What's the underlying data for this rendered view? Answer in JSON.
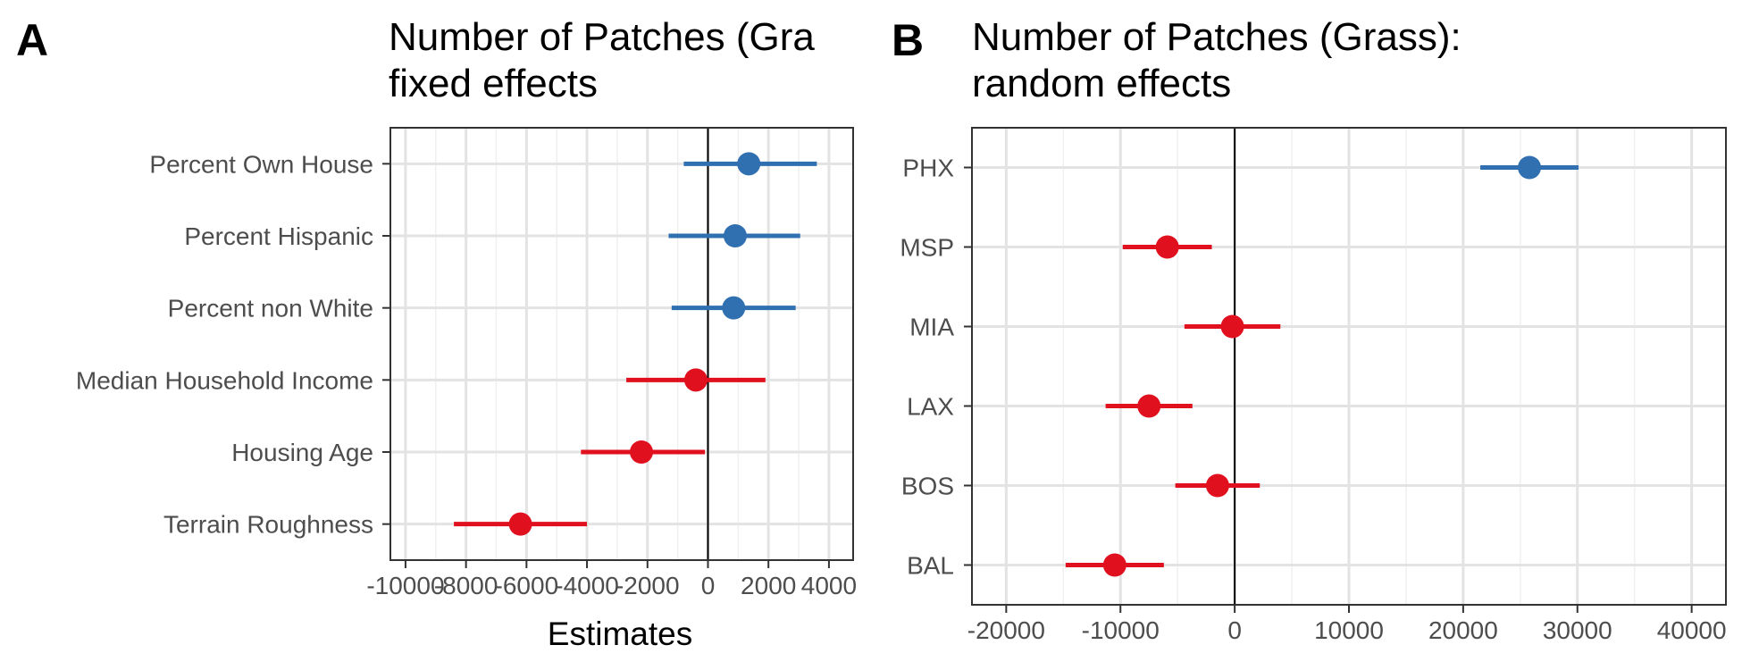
{
  "chart_data": [
    {
      "type": "forest",
      "panel_label": "A",
      "title_lines": [
        "Number of Patches (Gra",
        "fixed effects"
      ],
      "xlabel": "Estimates",
      "ylabel": "",
      "xlim": [
        -10500,
        4800
      ],
      "xticks": [
        -10000,
        -8000,
        -6000,
        -4000,
        -2000,
        0,
        2000,
        4000
      ],
      "xtick_labels": [
        "-10000",
        "-8000",
        "-6000",
        "-4000",
        "-2000",
        "0",
        "2000",
        "4000"
      ],
      "grid": true,
      "reference_line_x": 0,
      "categories": [
        "Percent Own House",
        "Percent Hispanic",
        "Percent non White",
        "Median Household Income",
        "Housing Age",
        "Terrain Roughness"
      ],
      "estimates": [
        1350,
        900,
        850,
        -400,
        -2200,
        -6200
      ],
      "ci_low": [
        -800,
        -1300,
        -1200,
        -2700,
        -4200,
        -8400
      ],
      "ci_high": [
        3600,
        3050,
        2900,
        1900,
        -100,
        -4000
      ],
      "point_colors": [
        "#3070b0",
        "#3070b0",
        "#3070b0",
        "#e0101e",
        "#e0101e",
        "#e0101e"
      ]
    },
    {
      "type": "forest",
      "panel_label": "B",
      "title_lines": [
        "Number of Patches (Grass):",
        "random effects"
      ],
      "xlabel": "",
      "ylabel": "",
      "xlim": [
        -23000,
        43000
      ],
      "xticks": [
        -20000,
        -10000,
        0,
        10000,
        20000,
        30000,
        40000
      ],
      "xtick_labels": [
        "-20000",
        "-10000",
        "0",
        "10000",
        "20000",
        "30000",
        "40000"
      ],
      "grid": true,
      "reference_line_x": 0,
      "categories": [
        "PHX",
        "MSP",
        "MIA",
        "LAX",
        "BOS",
        "BAL"
      ],
      "estimates": [
        25800,
        -5900,
        -200,
        -7500,
        -1500,
        -10500
      ],
      "ci_low": [
        21500,
        -9800,
        -4400,
        -11300,
        -5200,
        -14800
      ],
      "ci_high": [
        30100,
        -2000,
        4000,
        -3700,
        2200,
        -6200
      ],
      "point_colors": [
        "#3070b0",
        "#e0101e",
        "#e0101e",
        "#e0101e",
        "#e0101e",
        "#e0101e"
      ]
    }
  ]
}
